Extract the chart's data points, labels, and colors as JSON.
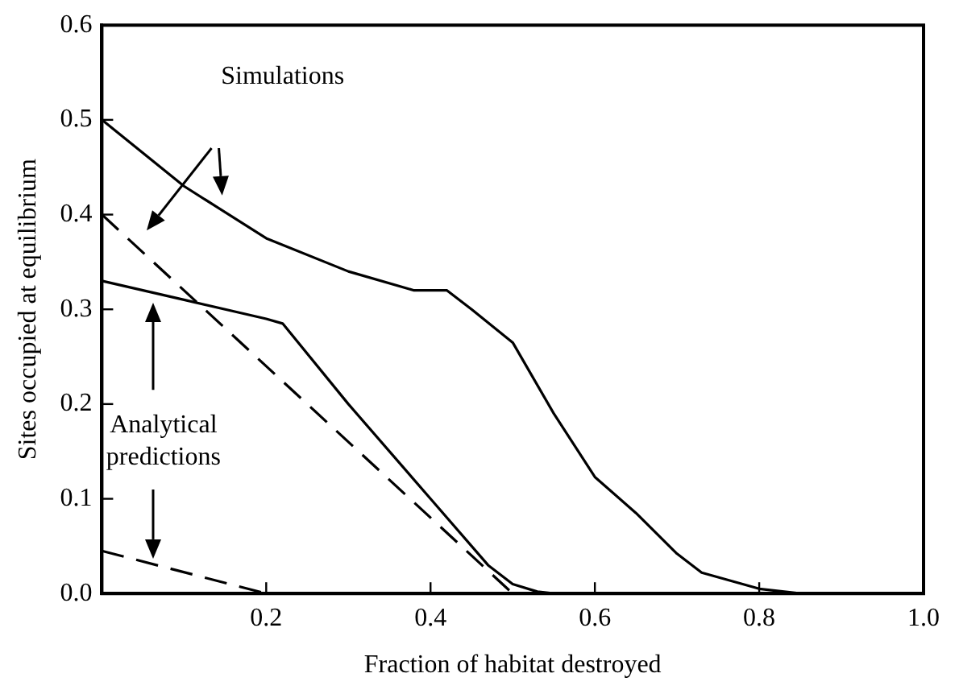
{
  "chart_data": {
    "type": "line",
    "xlabel": "Fraction of habitat destroyed",
    "ylabel": "Sites occupied at equilibrium",
    "xlim": [
      0,
      1
    ],
    "ylim": [
      0,
      0.6
    ],
    "xticks": [
      0.2,
      0.4,
      0.6,
      0.8,
      {
        "value": 1,
        "label": "1.0"
      }
    ],
    "yticks": [
      {
        "value": 0,
        "label": "0.0"
      },
      0.1,
      0.2,
      0.3,
      0.4,
      0.5,
      0.6
    ],
    "grid": false,
    "legend": false,
    "marker": "none",
    "annotations": [
      "Simulations",
      "Analytical predictions"
    ],
    "series": [
      {
        "color": "#000000",
        "line_style": "solid",
        "x": [
          0,
          0.1,
          0.2,
          0.3,
          0.38,
          0.42,
          0.45,
          0.5,
          0.55,
          0.6,
          0.65,
          0.7,
          0.73,
          0.8,
          0.85,
          1.0
        ],
        "values": [
          0.5,
          0.43,
          0.375,
          0.34,
          0.32,
          0.32,
          0.3,
          0.265,
          0.19,
          0.123,
          0.085,
          0.042,
          0.022,
          0.005,
          0,
          0
        ]
      },
      {
        "color": "#000000",
        "line_style": "solid",
        "x": [
          0,
          0.1,
          0.2,
          0.22,
          0.3,
          0.4,
          0.47,
          0.5,
          0.53,
          0.55
        ],
        "values": [
          0.33,
          0.31,
          0.29,
          0.285,
          0.2,
          0.1,
          0.03,
          0.01,
          0.002,
          0
        ]
      },
      {
        "color": "#000000",
        "line_style": "dashed",
        "x": [
          0,
          0.5
        ],
        "values": [
          0.4,
          0
        ]
      },
      {
        "color": "#000000",
        "line_style": "dashed",
        "x": [
          0,
          0.2
        ],
        "values": [
          0.045,
          0
        ]
      }
    ]
  }
}
